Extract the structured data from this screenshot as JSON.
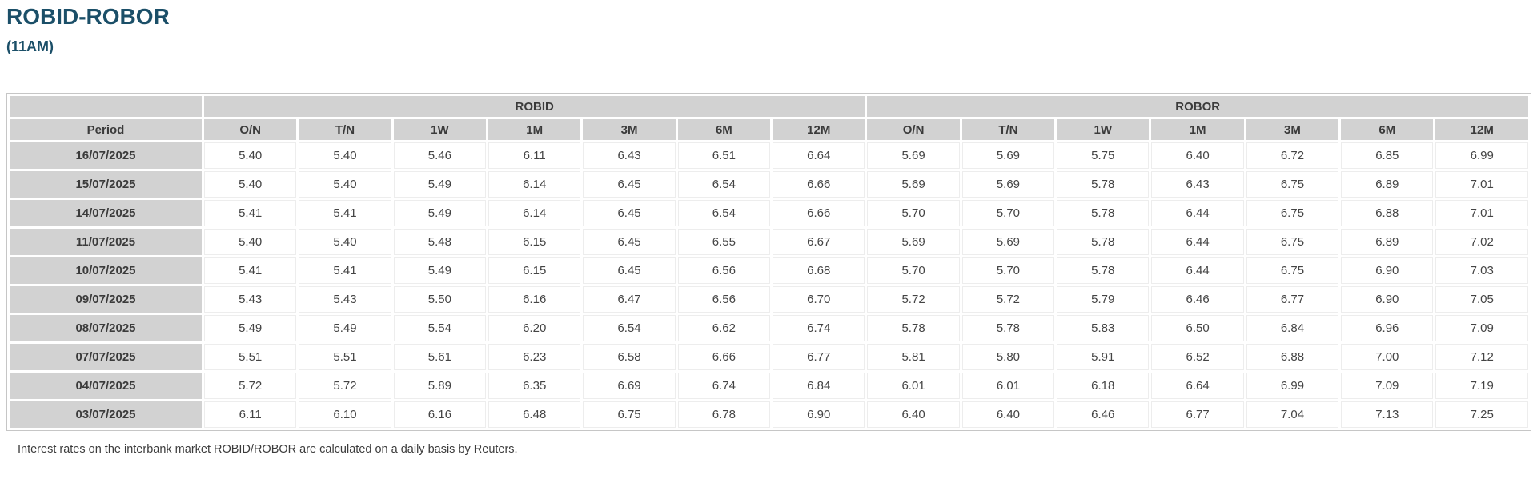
{
  "page": {
    "title": "ROBID-ROBOR",
    "subtitle": "(11AM)",
    "footnote": "Interest rates on the interbank market ROBID/ROBOR are calculated on a daily basis by Reuters."
  },
  "colors": {
    "title_text": "#1B4F68",
    "header_cell_bg": "#D2D2D2",
    "table_border": "#C6C6C6",
    "data_text": "#444444"
  },
  "table": {
    "group_headers": [
      "ROBID",
      "ROBOR"
    ],
    "period_header": "Period",
    "tenor_headers": [
      "O/N",
      "T/N",
      "1W",
      "1M",
      "3M",
      "6M",
      "12M"
    ],
    "rows": [
      {
        "period": "16/07/2025",
        "robid": [
          "5.40",
          "5.40",
          "5.46",
          "6.11",
          "6.43",
          "6.51",
          "6.64"
        ],
        "robor": [
          "5.69",
          "5.69",
          "5.75",
          "6.40",
          "6.72",
          "6.85",
          "6.99"
        ]
      },
      {
        "period": "15/07/2025",
        "robid": [
          "5.40",
          "5.40",
          "5.49",
          "6.14",
          "6.45",
          "6.54",
          "6.66"
        ],
        "robor": [
          "5.69",
          "5.69",
          "5.78",
          "6.43",
          "6.75",
          "6.89",
          "7.01"
        ]
      },
      {
        "period": "14/07/2025",
        "robid": [
          "5.41",
          "5.41",
          "5.49",
          "6.14",
          "6.45",
          "6.54",
          "6.66"
        ],
        "robor": [
          "5.70",
          "5.70",
          "5.78",
          "6.44",
          "6.75",
          "6.88",
          "7.01"
        ]
      },
      {
        "period": "11/07/2025",
        "robid": [
          "5.40",
          "5.40",
          "5.48",
          "6.15",
          "6.45",
          "6.55",
          "6.67"
        ],
        "robor": [
          "5.69",
          "5.69",
          "5.78",
          "6.44",
          "6.75",
          "6.89",
          "7.02"
        ]
      },
      {
        "period": "10/07/2025",
        "robid": [
          "5.41",
          "5.41",
          "5.49",
          "6.15",
          "6.45",
          "6.56",
          "6.68"
        ],
        "robor": [
          "5.70",
          "5.70",
          "5.78",
          "6.44",
          "6.75",
          "6.90",
          "7.03"
        ]
      },
      {
        "period": "09/07/2025",
        "robid": [
          "5.43",
          "5.43",
          "5.50",
          "6.16",
          "6.47",
          "6.56",
          "6.70"
        ],
        "robor": [
          "5.72",
          "5.72",
          "5.79",
          "6.46",
          "6.77",
          "6.90",
          "7.05"
        ]
      },
      {
        "period": "08/07/2025",
        "robid": [
          "5.49",
          "5.49",
          "5.54",
          "6.20",
          "6.54",
          "6.62",
          "6.74"
        ],
        "robor": [
          "5.78",
          "5.78",
          "5.83",
          "6.50",
          "6.84",
          "6.96",
          "7.09"
        ]
      },
      {
        "period": "07/07/2025",
        "robid": [
          "5.51",
          "5.51",
          "5.61",
          "6.23",
          "6.58",
          "6.66",
          "6.77"
        ],
        "robor": [
          "5.81",
          "5.80",
          "5.91",
          "6.52",
          "6.88",
          "7.00",
          "7.12"
        ]
      },
      {
        "period": "04/07/2025",
        "robid": [
          "5.72",
          "5.72",
          "5.89",
          "6.35",
          "6.69",
          "6.74",
          "6.84"
        ],
        "robor": [
          "6.01",
          "6.01",
          "6.18",
          "6.64",
          "6.99",
          "7.09",
          "7.19"
        ]
      },
      {
        "period": "03/07/2025",
        "robid": [
          "6.11",
          "6.10",
          "6.16",
          "6.48",
          "6.75",
          "6.78",
          "6.90"
        ],
        "robor": [
          "6.40",
          "6.40",
          "6.46",
          "6.77",
          "7.04",
          "7.13",
          "7.25"
        ]
      }
    ]
  }
}
